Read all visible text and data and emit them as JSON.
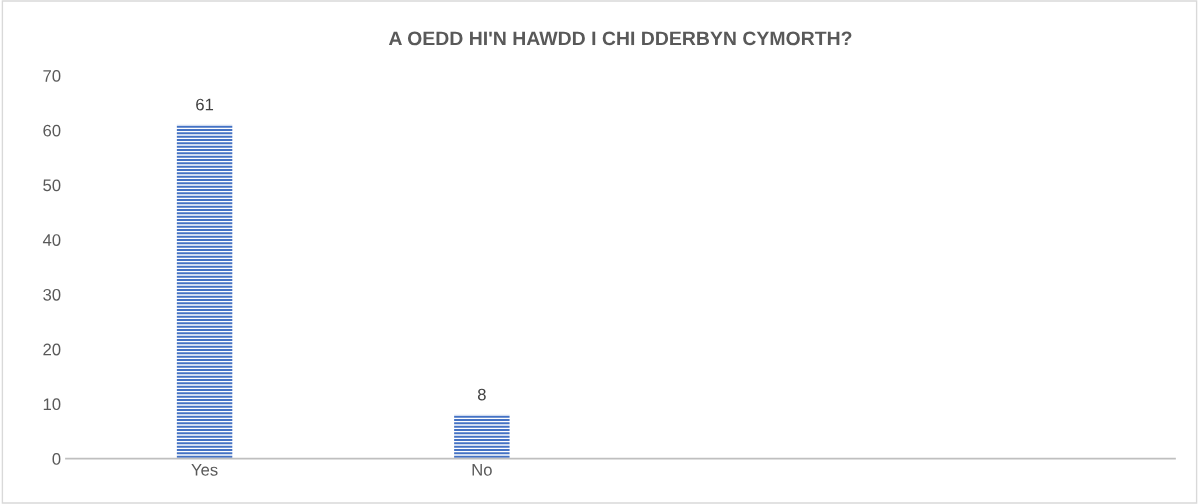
{
  "chart_data": {
    "type": "bar",
    "title": "A OEDD HI'N HAWDD I CHI DDERBYN CYMORTH?",
    "categories": [
      "Yes",
      "No",
      null,
      null
    ],
    "values": [
      61,
      8,
      null,
      null
    ],
    "color": "#4472c4",
    "ylim": [
      0,
      70
    ],
    "yticks": [
      0,
      10,
      20,
      30,
      40,
      50,
      60,
      70
    ],
    "data_labels": true,
    "grid": false,
    "legend": false
  }
}
